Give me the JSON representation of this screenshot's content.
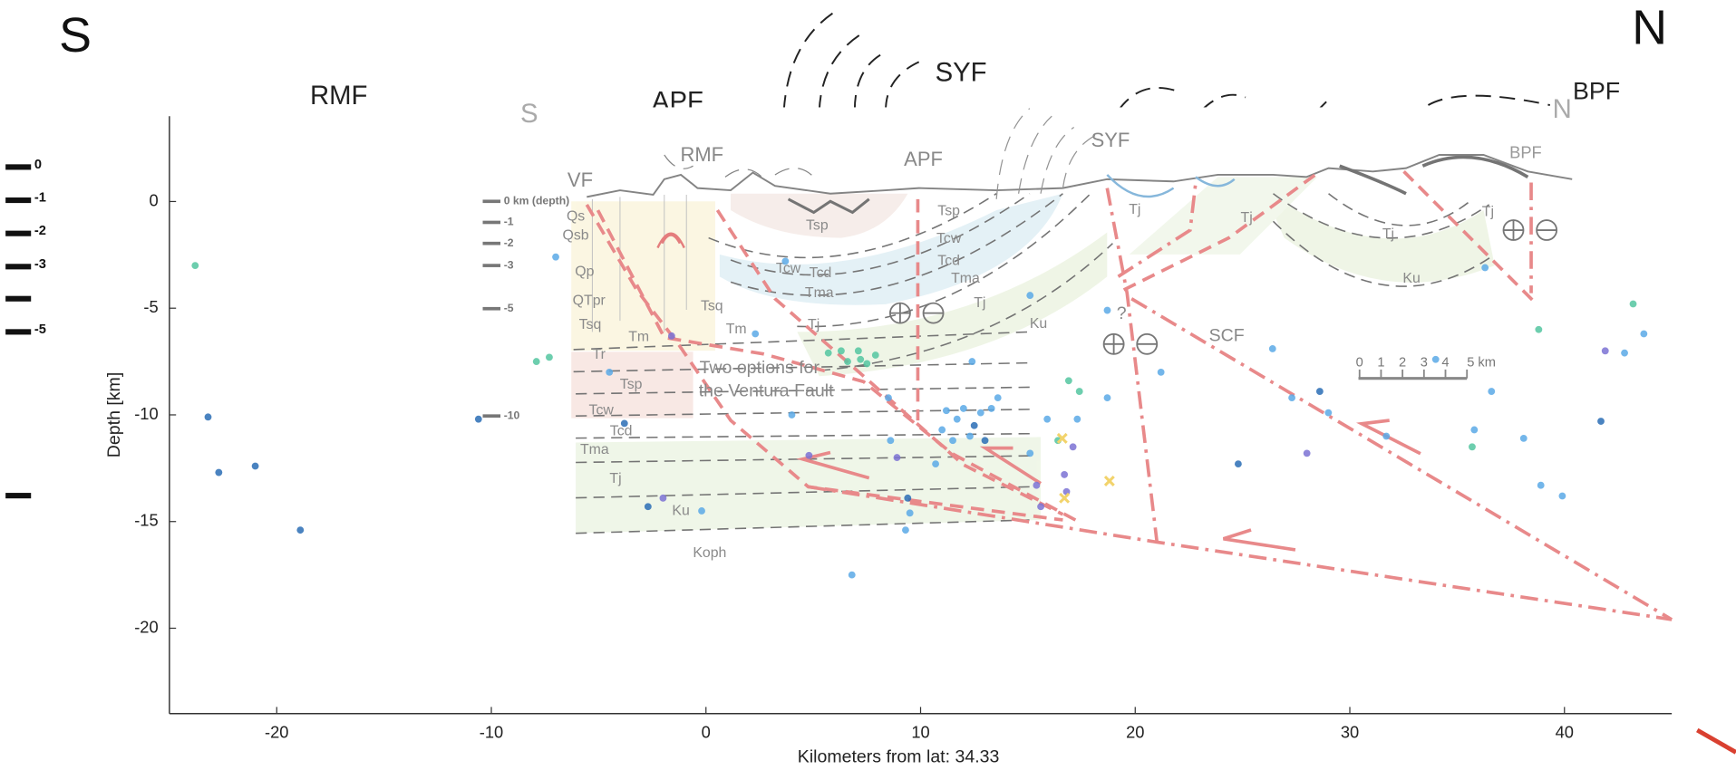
{
  "chart_data": {
    "type": "scatter",
    "xlabel": "Kilometers from lat: 34.33",
    "ylabel": "Depth [km]",
    "xlim": [
      -25,
      45
    ],
    "ylim": [
      -24,
      4
    ],
    "xticks": [
      -20,
      -10,
      0,
      10,
      20,
      30,
      40
    ],
    "yticks": [
      -20,
      -15,
      -10,
      -5,
      0
    ],
    "series": [
      {
        "color": "#2a6db5",
        "marker": "dot",
        "x": [
          -23.2,
          -22.7,
          -21.0,
          -18.9,
          -10.6,
          -3.8,
          -2.7,
          9.4,
          12.5,
          13.0,
          24.8,
          28.6,
          41.7
        ],
        "y": [
          -10.1,
          -12.7,
          -12.4,
          -15.4,
          -10.2,
          -10.4,
          -14.3,
          -13.9,
          -10.5,
          -11.2,
          -12.3,
          -8.9,
          -10.3
        ]
      },
      {
        "color": "#5aa9e6",
        "marker": "dot",
        "x": [
          -7.0,
          3.7,
          4.0,
          6.8,
          8.5,
          8.6,
          9.5,
          9.3,
          11.2,
          11.7,
          12.0,
          12.8,
          12.3,
          11.5,
          11.0,
          10.7,
          13.3,
          15.1,
          12.4,
          13.6,
          15.1,
          15.9,
          17.3,
          18.7,
          21.2,
          18.7,
          26.4,
          27.3,
          29.0,
          31.7,
          34.0,
          35.8,
          36.6,
          38.1,
          38.9,
          39.9,
          42.8,
          43.7,
          36.3,
          -4.5,
          -0.2,
          2.3
        ],
        "y": [
          -2.6,
          -2.8,
          -10.0,
          -17.5,
          -9.2,
          -11.2,
          -14.6,
          -15.4,
          -9.8,
          -10.2,
          -9.7,
          -9.9,
          -11.0,
          -11.2,
          -10.7,
          -12.3,
          -9.7,
          -4.4,
          -7.5,
          -9.2,
          -11.8,
          -10.2,
          -10.2,
          -9.2,
          -8.0,
          -5.1,
          -6.9,
          -9.2,
          -9.9,
          -11.0,
          -7.4,
          -10.7,
          -8.9,
          -11.1,
          -13.3,
          -13.8,
          -7.1,
          -6.2,
          -3.1,
          -8.0,
          -14.5,
          -6.2
        ]
      },
      {
        "color": "#54c6a0",
        "marker": "dot",
        "x": [
          -23.8,
          -7.9,
          -7.3,
          7.2,
          6.3,
          7.1,
          7.9,
          7.5,
          6.6,
          5.7,
          16.4,
          16.9,
          17.4,
          38.8,
          35.7,
          43.2
        ],
        "y": [
          -3.0,
          -7.5,
          -7.3,
          -7.4,
          -7.0,
          -7.0,
          -7.2,
          -7.6,
          -7.5,
          -7.1,
          -11.2,
          -8.4,
          -8.9,
          -6.0,
          -11.5,
          -4.8
        ]
      },
      {
        "color": "#7b72d4",
        "marker": "dot",
        "x": [
          -2.0,
          4.8,
          8.9,
          15.4,
          16.7,
          16.8,
          17.1,
          15.6,
          28.0,
          41.9,
          -1.6
        ],
        "y": [
          -13.9,
          -11.9,
          -12.0,
          -13.3,
          -12.8,
          -13.6,
          -11.5,
          -14.3,
          -11.8,
          -7.0,
          -6.3
        ]
      },
      {
        "color": "#f2d36b",
        "marker": "x",
        "x": [
          16.6,
          18.8,
          16.7
        ],
        "y": [
          -11.1,
          -13.1,
          -13.9
        ]
      }
    ],
    "annotations": [
      "S",
      "N",
      "RMF",
      "APF",
      "SYF",
      "BPF",
      "S",
      "N",
      "VF",
      "RMF",
      "APF",
      "SYF",
      "BPF",
      "Qs",
      "Qsb",
      "Qp",
      "QTpr",
      "Tsq",
      "Tm",
      "Tr",
      "Tsp",
      "Tcw",
      "Tcd",
      "Tma",
      "Tj",
      "Ku",
      "Koph",
      "Tsp",
      "Tcw",
      "Tcd",
      "Tma",
      "Tsq",
      "Tm",
      "Tj",
      "Tsp",
      "Tcw",
      "Tcd",
      "Tma",
      "Tj",
      "Ku",
      "Tj",
      "Tj",
      "Tj",
      "Ku",
      "Tj",
      "?",
      "SCF",
      "Two options for",
      "the Ventura Fault"
    ],
    "left_scale": [
      "0",
      "-1",
      "-2",
      "-3",
      "-5"
    ],
    "depth_scale": [
      "0 km (depth)",
      "-1",
      "-2",
      "-3",
      "-5",
      "-10"
    ],
    "scale_bar": [
      "0",
      "1",
      "2",
      "3",
      "4",
      "5 km"
    ]
  }
}
